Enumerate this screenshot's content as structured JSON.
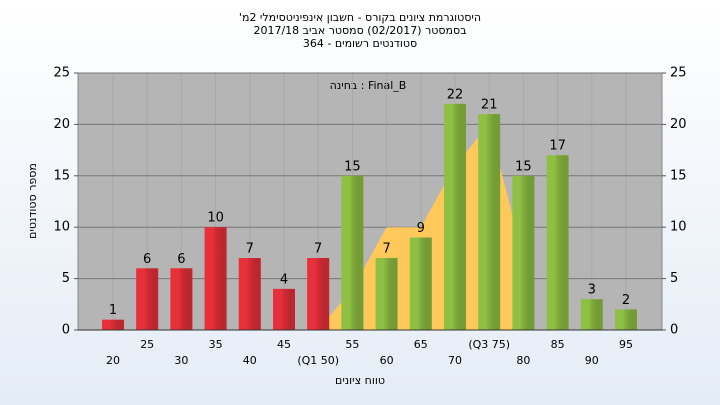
{
  "chart_data": {
    "type": "bar",
    "title": [
      "'היסטוגרמת ציונים בקורס - חשבון אינפיניטסימלי 2מ",
      "בסמסטר  (02/2017)  סמסטר אביב 2017/18",
      "סטודנטים רשומים - 364"
    ],
    "annotation": "בחינה : Final_B",
    "y_label": "מספר סטודנטים",
    "x_label": "טווח ציונים",
    "categories": [
      "20",
      "25",
      "30",
      "35",
      "40",
      "45",
      "(Q1 50)",
      "55",
      "60",
      "65",
      "70",
      "(Q3 75)",
      "80",
      "85",
      "90",
      "95"
    ],
    "values": [
      1,
      6,
      6,
      10,
      7,
      4,
      7,
      15,
      7,
      9,
      22,
      21,
      15,
      17,
      3,
      2
    ],
    "colors": [
      "#e8303a",
      "#e8303a",
      "#e8303a",
      "#e8303a",
      "#e8303a",
      "#e8303a",
      "#e8303a",
      "#8fc043",
      "#8fc043",
      "#8fc043",
      "#8fc043",
      "#8fc043",
      "#8fc043",
      "#8fc043",
      "#8fc043",
      "#8fc043"
    ],
    "area": {
      "color": "#ffc85a",
      "values": [
        null,
        null,
        null,
        null,
        null,
        null,
        0,
        4,
        10,
        10,
        16,
        20,
        7,
        null,
        null,
        null
      ]
    },
    "ylim": [
      0,
      25
    ],
    "yticks": [
      0,
      5,
      10,
      15,
      20,
      25
    ],
    "y2lim": [
      0,
      25
    ],
    "y2ticks": [
      0,
      5,
      10,
      15,
      20,
      25
    ],
    "grid": true
  }
}
